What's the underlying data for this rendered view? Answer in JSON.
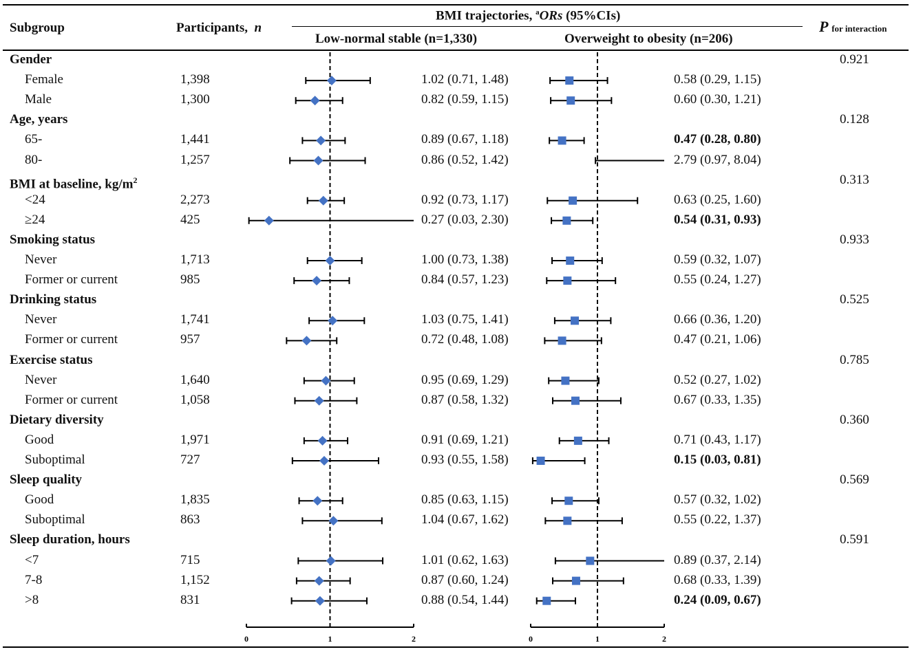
{
  "header": {
    "subgroup": "Subgroup",
    "participants": "Participants,",
    "participants_n": "n",
    "bmi_title": "BMI trajectories,",
    "bmi_sup": "a",
    "bmi_ors": "ORs",
    "bmi_ci": "(95%CIs)",
    "col_low": "Low-normal stable (n=1,330)",
    "col_high": "Overweight to obesity (n=206)",
    "p_label": "P",
    "p_sub": "for interaction"
  },
  "chart_data": {
    "type": "forest",
    "title": "BMI trajectories, aORs (95%CIs)",
    "reference_line": 1,
    "xlim": [
      0,
      2
    ],
    "x_ticks": [
      "0",
      "1",
      "2"
    ],
    "panels": [
      {
        "name": "Low-normal stable (n=1,330)",
        "marker": "diamond",
        "color": "#4472C4"
      },
      {
        "name": "Overweight to obesity (n=206)",
        "marker": "square",
        "color": "#4472C4"
      }
    ],
    "rows": [
      {
        "kind": "group",
        "label": "Gender",
        "p": "0.921"
      },
      {
        "kind": "item",
        "label": "Female",
        "n": "1,398",
        "low": {
          "or": 1.02,
          "lo": 0.71,
          "hi": 1.48,
          "text": "1.02 (0.71, 1.48)",
          "bold": false
        },
        "high": {
          "or": 0.58,
          "lo": 0.29,
          "hi": 1.15,
          "text": "0.58 (0.29, 1.15)",
          "bold": false
        }
      },
      {
        "kind": "item",
        "label": "Male",
        "n": "1,300",
        "low": {
          "or": 0.82,
          "lo": 0.59,
          "hi": 1.15,
          "text": "0.82 (0.59, 1.15)",
          "bold": false
        },
        "high": {
          "or": 0.6,
          "lo": 0.3,
          "hi": 1.21,
          "text": "0.60 (0.30, 1.21)",
          "bold": false
        }
      },
      {
        "kind": "group",
        "label": "Age, years",
        "p": "0.128"
      },
      {
        "kind": "item",
        "label": "65-",
        "n": "1,441",
        "low": {
          "or": 0.89,
          "lo": 0.67,
          "hi": 1.18,
          "text": "0.89 (0.67, 1.18)",
          "bold": false
        },
        "high": {
          "or": 0.47,
          "lo": 0.28,
          "hi": 0.8,
          "text": "0.47 (0.28, 0.80)",
          "bold": true
        }
      },
      {
        "kind": "item",
        "label": "80-",
        "n": "1,257",
        "low": {
          "or": 0.86,
          "lo": 0.52,
          "hi": 1.42,
          "text": "0.86 (0.52, 1.42)",
          "bold": false
        },
        "high": {
          "or": 2.79,
          "lo": 0.97,
          "hi": 8.04,
          "text": "2.79 (0.97, 8.04)",
          "bold": false
        }
      },
      {
        "kind": "group",
        "label": "BMI at baseline, kg/m",
        "sup": "2",
        "p": "0.313"
      },
      {
        "kind": "item",
        "label": "<24",
        "n": "2,273",
        "low": {
          "or": 0.92,
          "lo": 0.73,
          "hi": 1.17,
          "text": "0.92 (0.73, 1.17)",
          "bold": false
        },
        "high": {
          "or": 0.63,
          "lo": 0.25,
          "hi": 1.6,
          "text": "0.63 (0.25, 1.60)",
          "bold": false
        }
      },
      {
        "kind": "item",
        "label": "≥24",
        "n": "425",
        "low": {
          "or": 0.27,
          "lo": 0.03,
          "hi": 2.3,
          "text": "0.27 (0.03, 2.30)",
          "bold": false
        },
        "high": {
          "or": 0.54,
          "lo": 0.31,
          "hi": 0.93,
          "text": "0.54 (0.31, 0.93)",
          "bold": true
        }
      },
      {
        "kind": "group",
        "label": "Smoking status",
        "p": "0.933"
      },
      {
        "kind": "item",
        "label": "Never",
        "n": "1,713",
        "low": {
          "or": 1.0,
          "lo": 0.73,
          "hi": 1.38,
          "text": "1.00 (0.73, 1.38)",
          "bold": false
        },
        "high": {
          "or": 0.59,
          "lo": 0.32,
          "hi": 1.07,
          "text": "0.59 (0.32, 1.07)",
          "bold": false
        }
      },
      {
        "kind": "item",
        "label": "Former or current",
        "n": "985",
        "low": {
          "or": 0.84,
          "lo": 0.57,
          "hi": 1.23,
          "text": "0.84 (0.57, 1.23)",
          "bold": false
        },
        "high": {
          "or": 0.55,
          "lo": 0.24,
          "hi": 1.27,
          "text": "0.55 (0.24, 1.27)",
          "bold": false
        }
      },
      {
        "kind": "group",
        "label": "Drinking status",
        "p": "0.525"
      },
      {
        "kind": "item",
        "label": "Never",
        "n": "1,741",
        "low": {
          "or": 1.03,
          "lo": 0.75,
          "hi": 1.41,
          "text": "1.03 (0.75, 1.41)",
          "bold": false
        },
        "high": {
          "or": 0.66,
          "lo": 0.36,
          "hi": 1.2,
          "text": "0.66 (0.36, 1.20)",
          "bold": false
        }
      },
      {
        "kind": "item",
        "label": "Former or current",
        "n": "957",
        "low": {
          "or": 0.72,
          "lo": 0.48,
          "hi": 1.08,
          "text": "0.72 (0.48, 1.08)",
          "bold": false
        },
        "high": {
          "or": 0.47,
          "lo": 0.21,
          "hi": 1.06,
          "text": "0.47 (0.21, 1.06)",
          "bold": false
        }
      },
      {
        "kind": "group",
        "label": "Exercise status",
        "p": "0.785"
      },
      {
        "kind": "item",
        "label": "Never",
        "n": "1,640",
        "low": {
          "or": 0.95,
          "lo": 0.69,
          "hi": 1.29,
          "text": "0.95 (0.69, 1.29)",
          "bold": false
        },
        "high": {
          "or": 0.52,
          "lo": 0.27,
          "hi": 1.02,
          "text": "0.52 (0.27, 1.02)",
          "bold": false
        }
      },
      {
        "kind": "item",
        "label": "Former or current",
        "n": "1,058",
        "low": {
          "or": 0.87,
          "lo": 0.58,
          "hi": 1.32,
          "text": "0.87 (0.58, 1.32)",
          "bold": false
        },
        "high": {
          "or": 0.67,
          "lo": 0.33,
          "hi": 1.35,
          "text": "0.67 (0.33, 1.35)",
          "bold": false
        }
      },
      {
        "kind": "group",
        "label": "Dietary diversity",
        "p": "0.360"
      },
      {
        "kind": "item",
        "label": "Good",
        "n": "1,971",
        "low": {
          "or": 0.91,
          "lo": 0.69,
          "hi": 1.21,
          "text": "0.91 (0.69, 1.21)",
          "bold": false
        },
        "high": {
          "or": 0.71,
          "lo": 0.43,
          "hi": 1.17,
          "text": "0.71 (0.43, 1.17)",
          "bold": false
        }
      },
      {
        "kind": "item",
        "label": "Suboptimal",
        "n": "727",
        "low": {
          "or": 0.93,
          "lo": 0.55,
          "hi": 1.58,
          "text": "0.93 (0.55, 1.58)",
          "bold": false
        },
        "high": {
          "or": 0.15,
          "lo": 0.03,
          "hi": 0.81,
          "text": "0.15 (0.03, 0.81)",
          "bold": true
        }
      },
      {
        "kind": "group",
        "label": "Sleep quality",
        "p": "0.569"
      },
      {
        "kind": "item",
        "label": "Good",
        "n": "1,835",
        "low": {
          "or": 0.85,
          "lo": 0.63,
          "hi": 1.15,
          "text": "0.85 (0.63, 1.15)",
          "bold": false
        },
        "high": {
          "or": 0.57,
          "lo": 0.32,
          "hi": 1.02,
          "text": "0.57 (0.32, 1.02)",
          "bold": false
        }
      },
      {
        "kind": "item",
        "label": "Suboptimal",
        "n": "863",
        "low": {
          "or": 1.04,
          "lo": 0.67,
          "hi": 1.62,
          "text": "1.04 (0.67, 1.62)",
          "bold": false
        },
        "high": {
          "or": 0.55,
          "lo": 0.22,
          "hi": 1.37,
          "text": "0.55 (0.22, 1.37)",
          "bold": false
        }
      },
      {
        "kind": "group",
        "label": "Sleep duration, hours",
        "p": "0.591"
      },
      {
        "kind": "item",
        "label": "<7",
        "n": "715",
        "low": {
          "or": 1.01,
          "lo": 0.62,
          "hi": 1.63,
          "text": "1.01 (0.62, 1.63)",
          "bold": false
        },
        "high": {
          "or": 0.89,
          "lo": 0.37,
          "hi": 2.14,
          "text": "0.89 (0.37, 2.14)",
          "bold": false
        }
      },
      {
        "kind": "item",
        "label": "7-8",
        "n": "1,152",
        "low": {
          "or": 0.87,
          "lo": 0.6,
          "hi": 1.24,
          "text": "0.87 (0.60, 1.24)",
          "bold": false
        },
        "high": {
          "or": 0.68,
          "lo": 0.33,
          "hi": 1.39,
          "text": "0.68 (0.33, 1.39)",
          "bold": false
        }
      },
      {
        "kind": "item",
        "label": ">8",
        "n": "831",
        "low": {
          "or": 0.88,
          "lo": 0.54,
          "hi": 1.44,
          "text": "0.88 (0.54, 1.44)",
          "bold": false
        },
        "high": {
          "or": 0.24,
          "lo": 0.09,
          "hi": 0.67,
          "text": "0.24 (0.09, 0.67)",
          "bold": true
        }
      }
    ]
  }
}
